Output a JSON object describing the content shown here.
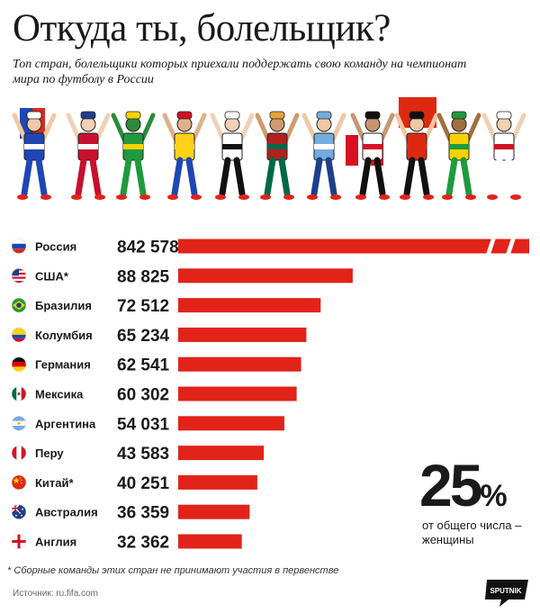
{
  "title": "Откуда ты, болельщик?",
  "subtitle": "Топ стран, болельщики которых приехали поддержать свою команду на чемпионат мира по футболу в России",
  "chart_data": {
    "type": "bar",
    "orientation": "horizontal",
    "axis_break_on": "Россия",
    "categories": [
      "Россия",
      "США*",
      "Бразилия",
      "Колумбия",
      "Германия",
      "Мексика",
      "Аргентина",
      "Перу",
      "Китай*",
      "Австралия",
      "Англия"
    ],
    "value_labels": [
      "842 578",
      "88 825",
      "72 512",
      "65 234",
      "62 541",
      "60 302",
      "54 031",
      "43 583",
      "40 251",
      "36 359",
      "32 362"
    ],
    "values": [
      842578,
      88825,
      72512,
      65234,
      62541,
      60302,
      54031,
      43583,
      40251,
      36359,
      32362
    ],
    "bar_color": "#e2231a",
    "flags": [
      "russia",
      "usa",
      "brazil",
      "colombia",
      "germany",
      "mexico",
      "argentina",
      "peru",
      "china",
      "australia",
      "england"
    ]
  },
  "highlight": {
    "number": "25",
    "unit": "%",
    "label": "от общего числа – женщины"
  },
  "footnote": "* Сборные команды этих стран не принимают участия в первенстве",
  "source_label": "Источник:",
  "source_value": "ru.fifa.com",
  "logo_text": "SPUTNIK"
}
